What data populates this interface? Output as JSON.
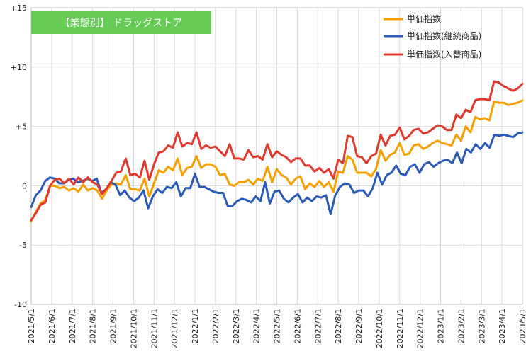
{
  "chart_data": {
    "type": "line",
    "title": "【業態別】 ドラッグストア",
    "title_color": "#66cc55",
    "ylim": [
      -10,
      15
    ],
    "yticks": [
      {
        "value": 15,
        "label": "+15"
      },
      {
        "value": 10,
        "label": "+10"
      },
      {
        "value": 5,
        "label": "+5"
      },
      {
        "value": 0,
        "label": "0"
      },
      {
        "value": -5,
        "label": "-5"
      },
      {
        "value": -10,
        "label": "-10"
      }
    ],
    "grid": true,
    "legend_position": "top-right",
    "x_start": "2021/5/1",
    "x_end": "2023/5/1",
    "xticks": [
      "2021/5/1",
      "2021/6/1",
      "2021/7/1",
      "2021/8/1",
      "2021/9/1",
      "2021/10/1",
      "2021/11/1",
      "2021/12/1",
      "2022/1/1",
      "2022/2/1",
      "2022/3/1",
      "2022/4/1",
      "2022/5/1",
      "2022/6/1",
      "2022/7/1",
      "2022/8/1",
      "2022/9/1",
      "2022/10/1",
      "2022/11/1",
      "2022/12/1",
      "2023/1/1",
      "2023/2/1",
      "2023/3/1",
      "2023/4/1",
      "2023/5/1"
    ],
    "series": [
      {
        "name": "単価指数",
        "color": "#f5a000",
        "values": [
          -3.0,
          -2.2,
          -1.5,
          -1.2,
          0.0,
          0.0,
          -0.2,
          -0.1,
          -0.4,
          -0.2,
          -0.5,
          0.1,
          -0.4,
          -0.2,
          -0.4,
          -1.1,
          -0.4,
          0.1,
          0.2,
          0.1,
          0.9,
          -0.3,
          -0.3,
          -0.4,
          0.6,
          -0.9,
          0.2,
          1.3,
          1.1,
          1.6,
          1.3,
          2.3,
          0.9,
          1.5,
          1.6,
          2.5,
          1.5,
          1.8,
          1.8,
          1.6,
          0.9,
          1.0,
          0.1,
          0.0,
          0.3,
          0.3,
          0.5,
          0.1,
          0.6,
          0.4,
          1.6,
          0.3,
          1.4,
          0.9,
          0.7,
          0.1,
          0.6,
          0.8,
          -0.3,
          0.2,
          -0.1,
          0.4,
          -0.1,
          0.3,
          -0.5,
          1.2,
          1.1,
          2.5,
          2.2,
          1.1,
          1.1,
          1.1,
          0.8,
          1.4,
          3.0,
          2.1,
          2.6,
          2.8,
          3.6,
          2.6,
          2.7,
          3.4,
          3.5,
          3.1,
          3.3,
          3.6,
          3.8,
          3.6,
          3.5,
          3.4,
          4.3,
          3.8,
          5.0,
          4.5,
          5.8,
          5.6,
          5.7,
          5.5,
          7.1,
          7.0,
          7.0,
          6.8,
          6.9,
          7.0,
          7.2
        ]
      },
      {
        "name": "単価指数(継続商品)",
        "color": "#2b5bb8",
        "values": [
          -1.8,
          -0.8,
          -0.4,
          0.4,
          0.7,
          0.6,
          0.2,
          0.2,
          0.5,
          0.6,
          0.3,
          0.4,
          0.6,
          0.4,
          0.6,
          -0.6,
          -0.3,
          0.3,
          0.1,
          -0.8,
          -0.4,
          -1.0,
          -1.3,
          -1.0,
          -0.4,
          -1.9,
          -0.9,
          -0.3,
          -0.6,
          -0.1,
          -0.2,
          0.3,
          -0.9,
          -0.2,
          -0.2,
          1.0,
          -0.1,
          -0.1,
          -0.3,
          -0.5,
          -0.6,
          -0.6,
          -1.7,
          -1.7,
          -1.3,
          -1.1,
          -1.2,
          -1.4,
          -0.9,
          -1.3,
          0.3,
          -1.5,
          -0.5,
          -0.4,
          -1.1,
          -1.4,
          -1.0,
          -0.7,
          -1.4,
          -1.0,
          -1.3,
          -0.9,
          -1.0,
          -0.8,
          -2.4,
          -0.8,
          -0.1,
          0.2,
          0.1,
          -0.6,
          -0.4,
          -0.4,
          -0.9,
          -0.2,
          1.1,
          0.1,
          0.9,
          1.1,
          1.7,
          1.0,
          0.9,
          1.6,
          1.8,
          1.1,
          1.8,
          2.0,
          1.6,
          1.9,
          2.1,
          2.2,
          1.9,
          2.8,
          1.9,
          3.1,
          2.8,
          3.5,
          3.1,
          3.6,
          3.2,
          4.3,
          4.2,
          4.3,
          4.2,
          4.1,
          4.4,
          4.5
        ]
      },
      {
        "name": "単価指数(入替商品)",
        "color": "#e03a2e",
        "values": [
          -2.9,
          -2.3,
          -1.6,
          -1.4,
          0.0,
          0.5,
          0.6,
          0.2,
          0.6,
          0.1,
          0.7,
          0.3,
          0.7,
          0.3,
          0.1,
          -0.7,
          -0.2,
          0.4,
          1.1,
          1.2,
          2.3,
          0.9,
          1.0,
          0.7,
          2.1,
          0.5,
          1.8,
          2.8,
          2.9,
          3.4,
          3.2,
          4.5,
          3.3,
          3.6,
          3.5,
          4.5,
          3.1,
          3.4,
          3.2,
          3.3,
          2.9,
          2.5,
          3.5,
          2.3,
          2.3,
          2.2,
          3.0,
          2.4,
          2.5,
          2.2,
          3.5,
          2.4,
          2.9,
          2.6,
          2.4,
          2.0,
          2.3,
          2.3,
          1.7,
          1.7,
          1.2,
          1.5,
          1.1,
          1.4,
          0.6,
          2.2,
          1.9,
          4.2,
          4.1,
          2.5,
          2.4,
          1.9,
          2.5,
          2.7,
          4.3,
          3.4,
          4.2,
          4.3,
          4.9,
          3.9,
          4.2,
          4.7,
          4.8,
          4.4,
          4.5,
          4.8,
          5.1,
          5.0,
          4.7,
          4.7,
          6.0,
          5.7,
          6.4,
          6.2,
          7.2,
          7.3,
          7.3,
          7.2,
          8.8,
          8.7,
          8.4,
          8.2,
          8.0,
          8.2,
          8.6
        ]
      }
    ]
  }
}
